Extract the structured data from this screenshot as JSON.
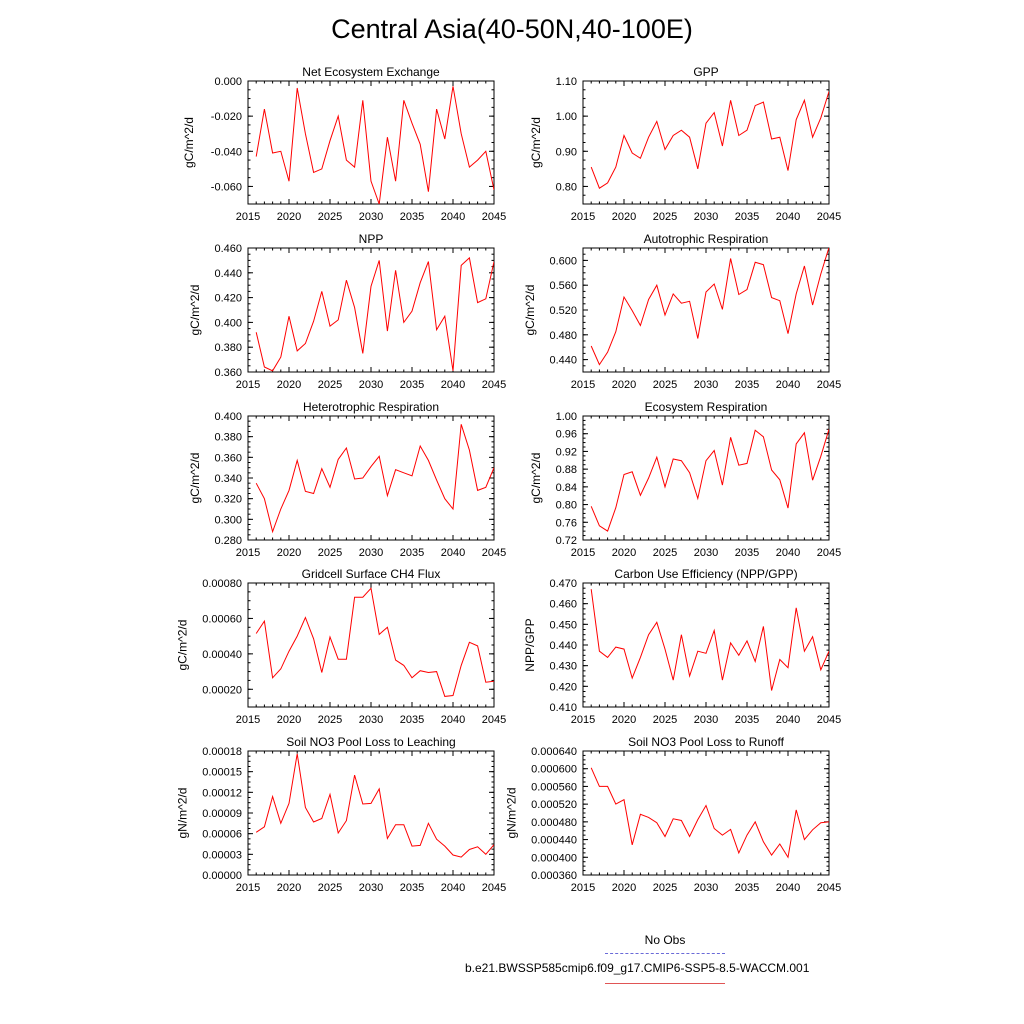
{
  "title": "Central Asia(40-50N,40-100E)",
  "legend": {
    "no_obs": "No Obs",
    "run": "b.e21.BWSSP585cmip6.f09_g17.CMIP6-SSP5-8.5-WACCM.001",
    "no_obs_color": "#6a6ad8",
    "run_color": "#ff0000"
  },
  "chart_data": [
    {
      "type": "line",
      "title": "Net Ecosystem Exchange",
      "ylabel": "gC/m^2/d",
      "xlim": [
        2015,
        2045
      ],
      "ylim": [
        -0.07,
        0.0
      ],
      "xticks": [
        "2015",
        "2020",
        "2025",
        "2030",
        "2035",
        "2040",
        "2045"
      ],
      "yticks": [
        "-0.060",
        "-0.040",
        "-0.020",
        "0.000"
      ],
      "x": [
        2016,
        2017,
        2018,
        2019,
        2020,
        2021,
        2022,
        2023,
        2024,
        2025,
        2026,
        2027,
        2028,
        2029,
        2030,
        2031,
        2032,
        2033,
        2034,
        2035,
        2036,
        2037,
        2038,
        2039,
        2040,
        2041,
        2042,
        2043,
        2044,
        2045
      ],
      "values": [
        -0.043,
        -0.016,
        -0.041,
        -0.04,
        -0.057,
        -0.004,
        -0.03,
        -0.052,
        -0.05,
        -0.034,
        -0.02,
        -0.045,
        -0.049,
        -0.011,
        -0.057,
        -0.07,
        -0.032,
        -0.057,
        -0.011,
        -0.024,
        -0.036,
        -0.063,
        -0.016,
        -0.033,
        -0.003,
        -0.03,
        -0.049,
        -0.045,
        -0.04,
        -0.062
      ]
    },
    {
      "type": "line",
      "title": "GPP",
      "ylabel": "gC/m^2/d",
      "xlim": [
        2015,
        2045
      ],
      "ylim": [
        0.75,
        1.1
      ],
      "xticks": [
        "2015",
        "2020",
        "2025",
        "2030",
        "2035",
        "2040",
        "2045"
      ],
      "yticks": [
        "0.80",
        "0.90",
        "1.00",
        "1.10"
      ],
      "x": [
        2016,
        2017,
        2018,
        2019,
        2020,
        2021,
        2022,
        2023,
        2024,
        2025,
        2026,
        2027,
        2028,
        2029,
        2030,
        2031,
        2032,
        2033,
        2034,
        2035,
        2036,
        2037,
        2038,
        2039,
        2040,
        2041,
        2042,
        2043,
        2044,
        2045
      ],
      "values": [
        0.855,
        0.795,
        0.81,
        0.855,
        0.945,
        0.895,
        0.88,
        0.94,
        0.985,
        0.905,
        0.945,
        0.96,
        0.94,
        0.85,
        0.98,
        1.01,
        0.915,
        1.045,
        0.945,
        0.96,
        1.03,
        1.04,
        0.935,
        0.94,
        0.845,
        0.99,
        1.045,
        0.94,
        0.995,
        1.07
      ]
    },
    {
      "type": "line",
      "title": "NPP",
      "ylabel": "gC/m^2/d",
      "xlim": [
        2015,
        2045
      ],
      "ylim": [
        0.36,
        0.46
      ],
      "xticks": [
        "2015",
        "2020",
        "2025",
        "2030",
        "2035",
        "2040",
        "2045"
      ],
      "yticks": [
        "0.360",
        "0.380",
        "0.400",
        "0.420",
        "0.440",
        "0.460"
      ],
      "x": [
        2016,
        2017,
        2018,
        2019,
        2020,
        2021,
        2022,
        2023,
        2024,
        2025,
        2026,
        2027,
        2028,
        2029,
        2030,
        2031,
        2032,
        2033,
        2034,
        2035,
        2036,
        2037,
        2038,
        2039,
        2040,
        2041,
        2042,
        2043,
        2044,
        2045
      ],
      "values": [
        0.392,
        0.364,
        0.361,
        0.372,
        0.405,
        0.377,
        0.383,
        0.401,
        0.425,
        0.397,
        0.402,
        0.434,
        0.412,
        0.375,
        0.429,
        0.45,
        0.393,
        0.442,
        0.4,
        0.409,
        0.432,
        0.449,
        0.394,
        0.405,
        0.361,
        0.446,
        0.452,
        0.416,
        0.419,
        0.449
      ]
    },
    {
      "type": "line",
      "title": "Autotrophic Respiration",
      "ylabel": "gC/m^2/d",
      "xlim": [
        2015,
        2045
      ],
      "ylim": [
        0.42,
        0.62
      ],
      "xticks": [
        "2015",
        "2020",
        "2025",
        "2030",
        "2035",
        "2040",
        "2045"
      ],
      "yticks": [
        "0.440",
        "0.480",
        "0.520",
        "0.560",
        "0.600"
      ],
      "x": [
        2016,
        2017,
        2018,
        2019,
        2020,
        2021,
        2022,
        2023,
        2024,
        2025,
        2026,
        2027,
        2028,
        2029,
        2030,
        2031,
        2032,
        2033,
        2034,
        2035,
        2036,
        2037,
        2038,
        2039,
        2040,
        2041,
        2042,
        2043,
        2044,
        2045
      ],
      "values": [
        0.462,
        0.432,
        0.452,
        0.485,
        0.541,
        0.519,
        0.495,
        0.537,
        0.56,
        0.512,
        0.546,
        0.531,
        0.534,
        0.474,
        0.549,
        0.562,
        0.521,
        0.603,
        0.545,
        0.553,
        0.597,
        0.593,
        0.54,
        0.535,
        0.482,
        0.546,
        0.591,
        0.528,
        0.578,
        0.621
      ]
    },
    {
      "type": "line",
      "title": "Heterotrophic Respiration",
      "ylabel": "gC/m^2/d",
      "xlim": [
        2015,
        2045
      ],
      "ylim": [
        0.28,
        0.4
      ],
      "xticks": [
        "2015",
        "2020",
        "2025",
        "2030",
        "2035",
        "2040",
        "2045"
      ],
      "yticks": [
        "0.280",
        "0.300",
        "0.320",
        "0.340",
        "0.360",
        "0.380",
        "0.400"
      ],
      "x": [
        2016,
        2017,
        2018,
        2019,
        2020,
        2021,
        2022,
        2023,
        2024,
        2025,
        2026,
        2027,
        2028,
        2029,
        2030,
        2031,
        2032,
        2033,
        2034,
        2035,
        2036,
        2037,
        2038,
        2039,
        2040,
        2041,
        2042,
        2043,
        2044,
        2045
      ],
      "values": [
        0.335,
        0.32,
        0.288,
        0.31,
        0.328,
        0.357,
        0.327,
        0.325,
        0.349,
        0.331,
        0.358,
        0.369,
        0.339,
        0.34,
        0.351,
        0.361,
        0.323,
        0.348,
        0.345,
        0.342,
        0.371,
        0.357,
        0.338,
        0.32,
        0.31,
        0.392,
        0.367,
        0.328,
        0.331,
        0.35
      ]
    },
    {
      "type": "line",
      "title": "Ecosystem Respiration",
      "ylabel": "gC/m^2/d",
      "xlim": [
        2015,
        2045
      ],
      "ylim": [
        0.72,
        1.0
      ],
      "xticks": [
        "2015",
        "2020",
        "2025",
        "2030",
        "2035",
        "2040",
        "2045"
      ],
      "yticks": [
        "0.72",
        "0.76",
        "0.80",
        "0.84",
        "0.88",
        "0.92",
        "0.96",
        "1.00"
      ],
      "x": [
        2016,
        2017,
        2018,
        2019,
        2020,
        2021,
        2022,
        2023,
        2024,
        2025,
        2026,
        2027,
        2028,
        2029,
        2030,
        2031,
        2032,
        2033,
        2034,
        2035,
        2036,
        2037,
        2038,
        2039,
        2040,
        2041,
        2042,
        2043,
        2044,
        2045
      ],
      "values": [
        0.796,
        0.752,
        0.74,
        0.793,
        0.868,
        0.874,
        0.821,
        0.86,
        0.907,
        0.84,
        0.903,
        0.899,
        0.872,
        0.814,
        0.899,
        0.922,
        0.844,
        0.952,
        0.889,
        0.893,
        0.968,
        0.953,
        0.878,
        0.856,
        0.792,
        0.937,
        0.962,
        0.855,
        0.909,
        0.97
      ]
    },
    {
      "type": "line",
      "title": "Gridcell Surface CH4 Flux",
      "ylabel": "gC/m^2/d",
      "xlim": [
        2015,
        2045
      ],
      "ylim": [
        0.0001,
        0.0008
      ],
      "xticks": [
        "2015",
        "2020",
        "2025",
        "2030",
        "2035",
        "2040",
        "2045"
      ],
      "yticks": [
        "0.00020",
        "0.00040",
        "0.00060",
        "0.00080"
      ],
      "x": [
        2016,
        2017,
        2018,
        2019,
        2020,
        2021,
        2022,
        2023,
        2024,
        2025,
        2026,
        2027,
        2028,
        2029,
        2030,
        2031,
        2032,
        2033,
        2034,
        2035,
        2036,
        2037,
        2038,
        2039,
        2040,
        2041,
        2042,
        2043,
        2044,
        2045
      ],
      "values": [
        0.000515,
        0.000585,
        0.000265,
        0.000315,
        0.000415,
        0.0005,
        0.000605,
        0.000485,
        0.000295,
        0.000495,
        0.00037,
        0.00037,
        0.00072,
        0.00072,
        0.00077,
        0.00051,
        0.00055,
        0.000365,
        0.000335,
        0.000265,
        0.000305,
        0.000295,
        0.0003,
        0.00016,
        0.000165,
        0.000335,
        0.000465,
        0.000445,
        0.00024,
        0.000245
      ]
    },
    {
      "type": "line",
      "title": "Carbon Use Efficiency (NPP/GPP)",
      "ylabel": "NPP/GPP",
      "xlim": [
        2015,
        2045
      ],
      "ylim": [
        0.41,
        0.47
      ],
      "xticks": [
        "2015",
        "2020",
        "2025",
        "2030",
        "2035",
        "2040",
        "2045"
      ],
      "yticks": [
        "0.410",
        "0.420",
        "0.430",
        "0.440",
        "0.450",
        "0.460",
        "0.470"
      ],
      "x": [
        2016,
        2017,
        2018,
        2019,
        2020,
        2021,
        2022,
        2023,
        2024,
        2025,
        2026,
        2027,
        2028,
        2029,
        2030,
        2031,
        2032,
        2033,
        2034,
        2035,
        2036,
        2037,
        2038,
        2039,
        2040,
        2041,
        2042,
        2043,
        2044,
        2045
      ],
      "values": [
        0.467,
        0.437,
        0.434,
        0.439,
        0.438,
        0.424,
        0.434,
        0.445,
        0.451,
        0.438,
        0.423,
        0.445,
        0.425,
        0.437,
        0.436,
        0.447,
        0.423,
        0.441,
        0.435,
        0.442,
        0.432,
        0.449,
        0.418,
        0.433,
        0.429,
        0.458,
        0.437,
        0.444,
        0.428,
        0.437
      ]
    },
    {
      "type": "line",
      "title": "Soil NO3 Pool Loss to Leaching",
      "ylabel": "gN/m^2/d",
      "xlim": [
        2015,
        2045
      ],
      "ylim": [
        0.0,
        0.00018
      ],
      "xticks": [
        "2015",
        "2020",
        "2025",
        "2030",
        "2035",
        "2040",
        "2045"
      ],
      "yticks": [
        "0.00000",
        "0.00003",
        "0.00006",
        "0.00009",
        "0.00012",
        "0.00015",
        "0.00018"
      ],
      "x": [
        2016,
        2017,
        2018,
        2019,
        2020,
        2021,
        2022,
        2023,
        2024,
        2025,
        2026,
        2027,
        2028,
        2029,
        2030,
        2031,
        2032,
        2033,
        2034,
        2035,
        2036,
        2037,
        2038,
        2039,
        2040,
        2041,
        2042,
        2043,
        2044,
        2045
      ],
      "values": [
        6.2e-05,
        7e-05,
        0.000114,
        7.5e-05,
        0.000104,
        0.000176,
        9.8e-05,
        7.7e-05,
        8.2e-05,
        0.000117,
        6.1e-05,
        7.9e-05,
        0.000145,
        0.000103,
        0.000104,
        0.000125,
        5.3e-05,
        7.3e-05,
        7.3e-05,
        4.2e-05,
        4.3e-05,
        7.5e-05,
        5.2e-05,
        4.2e-05,
        2.9e-05,
        2.6e-05,
        3.7e-05,
        4.1e-05,
        3e-05,
        4.4e-05
      ]
    },
    {
      "type": "line",
      "title": "Soil NO3 Pool Loss to Runoff",
      "ylabel": "gN/m^2/d",
      "xlim": [
        2015,
        2045
      ],
      "ylim": [
        0.00036,
        0.00064
      ],
      "xticks": [
        "2015",
        "2020",
        "2025",
        "2030",
        "2035",
        "2040",
        "2045"
      ],
      "yticks": [
        "0.000360",
        "0.000400",
        "0.000440",
        "0.000480",
        "0.000520",
        "0.000560",
        "0.000600",
        "0.000640"
      ],
      "x": [
        2016,
        2017,
        2018,
        2019,
        2020,
        2021,
        2022,
        2023,
        2024,
        2025,
        2026,
        2027,
        2028,
        2029,
        2030,
        2031,
        2032,
        2033,
        2034,
        2035,
        2036,
        2037,
        2038,
        2039,
        2040,
        2041,
        2042,
        2043,
        2044,
        2045
      ],
      "values": [
        0.000602,
        0.00056,
        0.00056,
        0.00052,
        0.00053,
        0.000428,
        0.000497,
        0.00049,
        0.000478,
        0.000447,
        0.000487,
        0.000483,
        0.000447,
        0.000485,
        0.000517,
        0.000465,
        0.00045,
        0.000463,
        0.00041,
        0.00045,
        0.00048,
        0.000435,
        0.000405,
        0.00043,
        0.0004,
        0.000507,
        0.00044,
        0.000462,
        0.000478,
        0.00048
      ]
    }
  ]
}
